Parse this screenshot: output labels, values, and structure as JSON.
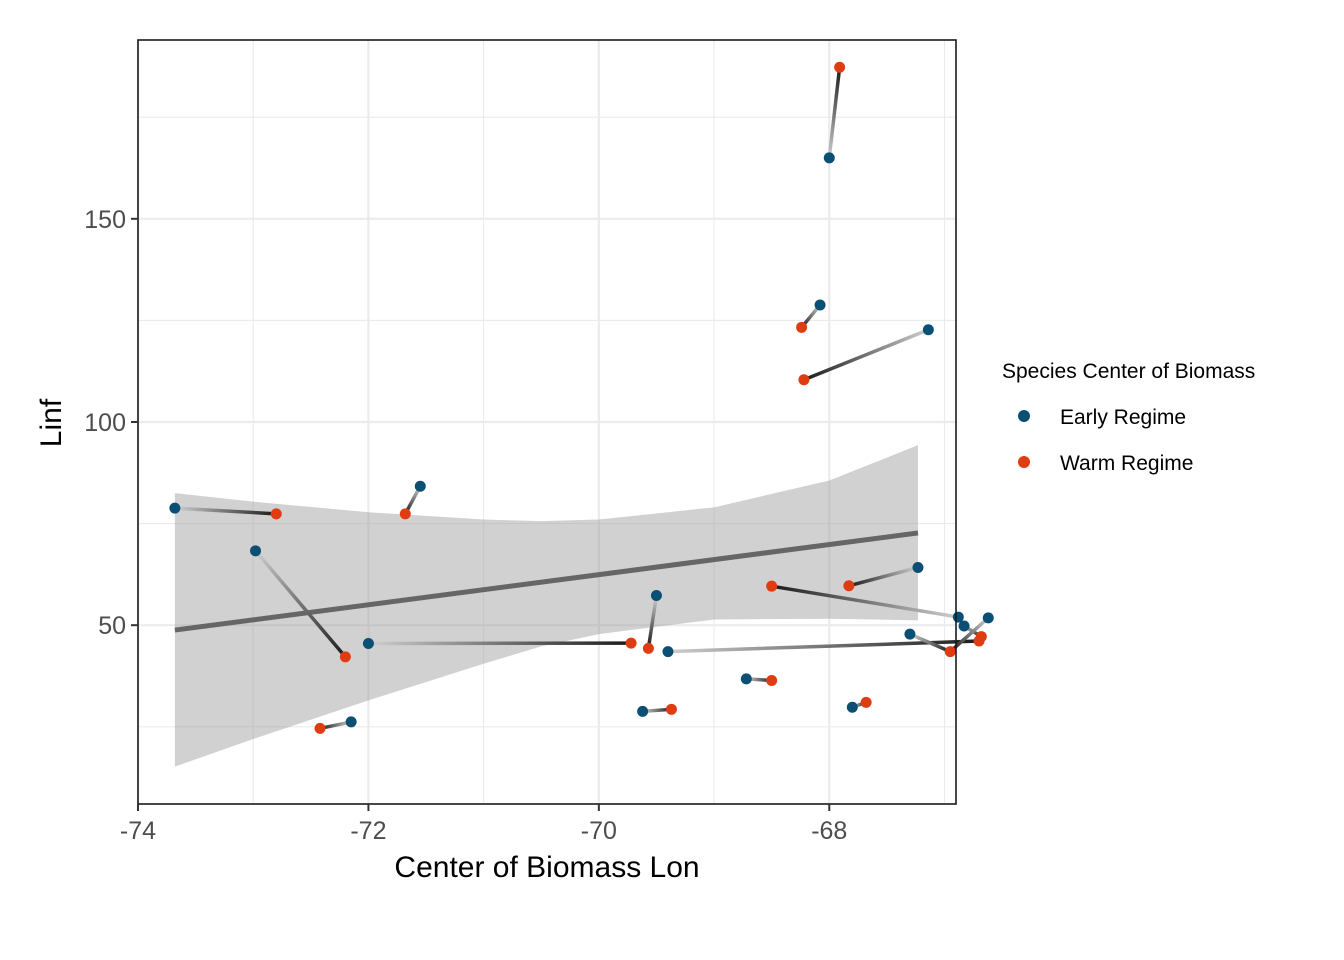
{
  "chart_data": {
    "type": "scatter",
    "xlabel": "Center of Biomass Lon",
    "ylabel": "Linf",
    "xlim": [
      -74.0,
      -66.9
    ],
    "ylim": [
      6,
      194
    ],
    "x_ticks": [
      -74,
      -72,
      -70,
      -68
    ],
    "x_tick_labels": [
      "-74",
      "-72",
      "-70",
      "-68"
    ],
    "y_ticks": [
      50,
      100,
      150
    ],
    "y_tick_labels": [
      "50",
      "100",
      "150"
    ],
    "grid": true,
    "legend": {
      "title": "Species Center of Biomass",
      "placement": "right",
      "entries": [
        {
          "label": "Early Regime",
          "color": "#0B4F74"
        },
        {
          "label": "Warm Regime",
          "color": "#E03C12"
        }
      ]
    },
    "series": [
      {
        "name": "Early Regime",
        "color": "#0B4F74",
        "points": [
          [
            -73.68,
            78.8
          ],
          [
            -72.98,
            68.3
          ],
          [
            -72.0,
            45.5
          ],
          [
            -71.55,
            84.2
          ],
          [
            -72.15,
            26.2
          ],
          [
            -69.5,
            57.3
          ],
          [
            -69.62,
            28.8
          ],
          [
            -69.4,
            43.5
          ],
          [
            -67.14,
            122.7
          ],
          [
            -68.08,
            128.8
          ],
          [
            -68.0,
            165.0
          ],
          [
            -66.88,
            52.0
          ],
          [
            -66.83,
            49.8
          ],
          [
            -66.62,
            51.8
          ],
          [
            -68.72,
            36.8
          ],
          [
            -67.8,
            29.8
          ],
          [
            -67.3,
            47.8
          ],
          [
            -67.23,
            64.2
          ]
        ]
      },
      {
        "name": "Warm Regime",
        "color": "#E03C12",
        "points": [
          [
            -72.8,
            77.4
          ],
          [
            -72.2,
            42.2
          ],
          [
            -71.68,
            77.4
          ],
          [
            -72.42,
            24.6
          ],
          [
            -69.57,
            44.3
          ],
          [
            -69.72,
            45.6
          ],
          [
            -69.37,
            29.3
          ],
          [
            -68.22,
            110.4
          ],
          [
            -68.24,
            123.3
          ],
          [
            -67.91,
            187.3
          ],
          [
            -66.95,
            43.5
          ],
          [
            -66.7,
            46.1
          ],
          [
            -66.68,
            47.2
          ],
          [
            -68.5,
            59.6
          ],
          [
            -68.5,
            36.4
          ],
          [
            -67.68,
            31.0
          ],
          [
            -67.83,
            59.7
          ]
        ]
      }
    ],
    "segments": [
      {
        "from": [
          -73.68,
          78.8
        ],
        "to": [
          -72.8,
          77.4
        ]
      },
      {
        "from": [
          -72.98,
          68.3
        ],
        "to": [
          -72.2,
          42.2
        ]
      },
      {
        "from": [
          -72.0,
          45.5
        ],
        "to": [
          -69.72,
          45.6
        ]
      },
      {
        "from": [
          -71.55,
          84.2
        ],
        "to": [
          -71.68,
          77.4
        ]
      },
      {
        "from": [
          -72.15,
          26.2
        ],
        "to": [
          -72.42,
          24.6
        ]
      },
      {
        "from": [
          -69.5,
          57.3
        ],
        "to": [
          -69.57,
          44.3
        ]
      },
      {
        "from": [
          -69.62,
          28.8
        ],
        "to": [
          -69.37,
          29.3
        ]
      },
      {
        "from": [
          -69.4,
          43.5
        ],
        "to": [
          -66.7,
          46.1
        ]
      },
      {
        "from": [
          -67.14,
          122.7
        ],
        "to": [
          -68.22,
          110.4
        ]
      },
      {
        "from": [
          -68.08,
          128.8
        ],
        "to": [
          -68.24,
          123.3
        ]
      },
      {
        "from": [
          -68.0,
          165.0
        ],
        "to": [
          -67.91,
          187.3
        ]
      },
      {
        "from": [
          -66.88,
          52.0
        ],
        "to": [
          -68.5,
          59.6
        ]
      },
      {
        "from": [
          -66.83,
          49.8
        ],
        "to": [
          -66.68,
          47.2
        ]
      },
      {
        "from": [
          -66.62,
          51.8
        ],
        "to": [
          -66.95,
          43.5
        ]
      },
      {
        "from": [
          -68.72,
          36.8
        ],
        "to": [
          -68.5,
          36.4
        ]
      },
      {
        "from": [
          -67.8,
          29.8
        ],
        "to": [
          -67.68,
          31.0
        ]
      },
      {
        "from": [
          -67.3,
          47.8
        ],
        "to": [
          -66.95,
          43.5
        ]
      },
      {
        "from": [
          -67.23,
          64.2
        ],
        "to": [
          -67.83,
          59.7
        ]
      }
    ],
    "trend": {
      "x_range": [
        -73.68,
        -67.23
      ],
      "y_start": 48.8,
      "y_end": 72.7,
      "band": [
        {
          "x": -73.68,
          "lower": 15.2,
          "upper": 82.5
        },
        {
          "x": -73.0,
          "lower": 22.0,
          "upper": 80.4
        },
        {
          "x": -72.0,
          "lower": 31.5,
          "upper": 77.8
        },
        {
          "x": -71.0,
          "lower": 40.5,
          "upper": 76.0
        },
        {
          "x": -70.5,
          "lower": 44.8,
          "upper": 75.6
        },
        {
          "x": -70.0,
          "lower": 47.8,
          "upper": 76.0
        },
        {
          "x": -69.0,
          "lower": 51.4,
          "upper": 79.0
        },
        {
          "x": -68.0,
          "lower": 51.6,
          "upper": 85.6
        },
        {
          "x": -67.23,
          "lower": 51.2,
          "upper": 94.3
        }
      ]
    }
  }
}
